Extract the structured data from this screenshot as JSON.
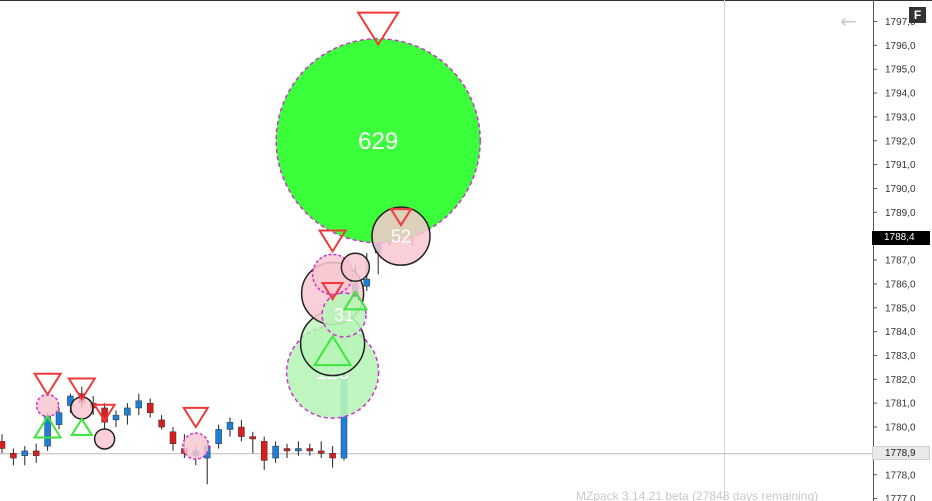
{
  "badge": {
    "label": "F"
  },
  "nav": {
    "back_icon": "left-arrow-icon"
  },
  "watermark": {
    "text": "MZpack 3.14.21 beta  (27848 days remaining)"
  },
  "price_tags": {
    "last": "1788,4",
    "crosshair": "1778,9"
  },
  "colors": {
    "up": "#1e7fd8",
    "down": "#d81e1e",
    "big_fill": "#3cff3c",
    "sell_triangle": "#f03a3a",
    "buy_triangle": "#3ce63c",
    "dashed_ring": "#cc33cc",
    "pink_fill": "#f8c8d0",
    "light_green_fill": "#b8f5b8"
  },
  "chart_data": {
    "type": "candlestick",
    "y_axis": {
      "labels": [
        "1797,0",
        "1796,0",
        "1795,0",
        "1794,0",
        "1793,0",
        "1792,0",
        "1791,0",
        "1790,0",
        "1789,0",
        "1788,0",
        "1787,0",
        "1786,0",
        "1785,0",
        "1784,0",
        "1783,0",
        "1782,0",
        "1781,0",
        "1780,0",
        "1779,0",
        "1778,0",
        "1777,0"
      ],
      "range": [
        1776.9,
        1797.9
      ],
      "position": "right"
    },
    "candles": [
      {
        "o": 1779.4,
        "h": 1779.7,
        "l": 1778.9,
        "c": 1779.1
      },
      {
        "o": 1778.9,
        "h": 1779.1,
        "l": 1778.4,
        "c": 1778.7
      },
      {
        "o": 1778.8,
        "h": 1779.2,
        "l": 1778.4,
        "c": 1779.0
      },
      {
        "o": 1779.0,
        "h": 1779.3,
        "l": 1778.5,
        "c": 1778.8
      },
      {
        "o": 1779.2,
        "h": 1780.6,
        "l": 1779.0,
        "c": 1780.5
      },
      {
        "o": 1780.1,
        "h": 1780.8,
        "l": 1779.9,
        "c": 1780.6
      },
      {
        "o": 1780.9,
        "h": 1781.4,
        "l": 1780.6,
        "c": 1781.3
      },
      {
        "o": 1781.4,
        "h": 1781.7,
        "l": 1780.8,
        "c": 1781.0
      },
      {
        "o": 1781.0,
        "h": 1781.3,
        "l": 1780.5,
        "c": 1780.8
      },
      {
        "o": 1780.8,
        "h": 1781.0,
        "l": 1779.9,
        "c": 1780.2
      },
      {
        "o": 1780.3,
        "h": 1780.7,
        "l": 1780.0,
        "c": 1780.5
      },
      {
        "o": 1780.5,
        "h": 1781.0,
        "l": 1780.1,
        "c": 1780.8
      },
      {
        "o": 1780.8,
        "h": 1781.4,
        "l": 1780.5,
        "c": 1781.1
      },
      {
        "o": 1781.0,
        "h": 1781.2,
        "l": 1780.4,
        "c": 1780.6
      },
      {
        "o": 1780.3,
        "h": 1780.5,
        "l": 1779.9,
        "c": 1780.0
      },
      {
        "o": 1779.8,
        "h": 1780.0,
        "l": 1779.0,
        "c": 1779.3
      },
      {
        "o": 1779.1,
        "h": 1779.7,
        "l": 1778.7,
        "c": 1778.9
      },
      {
        "o": 1778.8,
        "h": 1779.2,
        "l": 1778.4,
        "c": 1779.0
      },
      {
        "o": 1778.7,
        "h": 1779.4,
        "l": 1777.6,
        "c": 1779.2
      },
      {
        "o": 1779.3,
        "h": 1780.1,
        "l": 1779.1,
        "c": 1779.9
      },
      {
        "o": 1779.9,
        "h": 1780.4,
        "l": 1779.6,
        "c": 1780.2
      },
      {
        "o": 1780.0,
        "h": 1780.3,
        "l": 1779.4,
        "c": 1779.6
      },
      {
        "o": 1779.6,
        "h": 1779.8,
        "l": 1778.9,
        "c": 1779.5
      },
      {
        "o": 1779.4,
        "h": 1779.6,
        "l": 1778.2,
        "c": 1778.6
      },
      {
        "o": 1778.7,
        "h": 1779.4,
        "l": 1778.5,
        "c": 1779.2
      },
      {
        "o": 1779.1,
        "h": 1779.3,
        "l": 1778.7,
        "c": 1779.0
      },
      {
        "o": 1779.0,
        "h": 1779.4,
        "l": 1778.8,
        "c": 1779.1
      },
      {
        "o": 1779.1,
        "h": 1779.3,
        "l": 1778.8,
        "c": 1779.0
      },
      {
        "o": 1779.0,
        "h": 1779.4,
        "l": 1778.7,
        "c": 1778.9
      },
      {
        "o": 1778.9,
        "h": 1779.2,
        "l": 1778.3,
        "c": 1778.7
      },
      {
        "o": 1778.7,
        "h": 1784.4,
        "l": 1778.6,
        "c": 1784.0
      },
      {
        "o": 1785.3,
        "h": 1786.8,
        "l": 1784.6,
        "c": 1786.0
      },
      {
        "o": 1785.9,
        "h": 1787.3,
        "l": 1785.7,
        "c": 1786.2
      },
      {
        "o": 1787.3,
        "h": 1791.3,
        "l": 1786.4,
        "c": 1789.3
      },
      {
        "o": 1789.3,
        "h": 1790.0,
        "l": 1787.6,
        "c": 1788.3
      },
      {
        "o": 1788.3,
        "h": 1789.0,
        "l": 1787.8,
        "c": 1788.1
      },
      {
        "o": 1788.0,
        "h": 1788.7,
        "l": 1787.6,
        "c": 1788.4
      }
    ],
    "bubbles": [
      {
        "index": 33,
        "price": 1792.0,
        "size": 102,
        "style": "big",
        "label": "629"
      },
      {
        "index": 35,
        "price": 1788.0,
        "size": 29,
        "style": "pink",
        "label": "52"
      },
      {
        "index": 29,
        "price": 1782.3,
        "size": 46,
        "style": "lightgreen",
        "label": "126"
      },
      {
        "index": 29,
        "price": 1783.5,
        "size": 32,
        "style": "green",
        "label": ""
      },
      {
        "index": 29,
        "price": 1785.6,
        "size": 31,
        "style": "pink",
        "label": ""
      },
      {
        "index": 30,
        "price": 1784.7,
        "size": 22,
        "style": "lightgreen",
        "label": "31"
      },
      {
        "index": 29,
        "price": 1786.4,
        "size": 20,
        "style": "pinkdash",
        "label": ""
      },
      {
        "index": 31,
        "price": 1786.7,
        "size": 14,
        "style": "pink",
        "label": ""
      },
      {
        "index": 4,
        "price": 1780.9,
        "size": 11,
        "style": "pinkdash",
        "label": ""
      },
      {
        "index": 7,
        "price": 1780.8,
        "size": 11,
        "style": "pink",
        "label": ""
      },
      {
        "index": 9,
        "price": 1779.5,
        "size": 10,
        "style": "pink",
        "label": ""
      },
      {
        "index": 17,
        "price": 1779.2,
        "size": 13,
        "style": "pinkdash",
        "label": ""
      }
    ],
    "triangles": [
      {
        "index": 33,
        "price": 1796.7,
        "dir": "down",
        "size": 20
      },
      {
        "index": 35,
        "price": 1788.8,
        "dir": "down",
        "size": 10
      },
      {
        "index": 29,
        "price": 1787.8,
        "dir": "down",
        "size": 13
      },
      {
        "index": 29,
        "price": 1785.7,
        "dir": "down",
        "size": 10
      },
      {
        "index": 4,
        "price": 1781.8,
        "dir": "down",
        "size": 13
      },
      {
        "index": 7,
        "price": 1781.6,
        "dir": "down",
        "size": 13
      },
      {
        "index": 9,
        "price": 1780.6,
        "dir": "down",
        "size": 10
      },
      {
        "index": 17,
        "price": 1780.4,
        "dir": "down",
        "size": 12
      },
      {
        "index": 29,
        "price": 1783.2,
        "dir": "up",
        "size": 18
      },
      {
        "index": 31,
        "price": 1785.3,
        "dir": "up",
        "size": 11
      },
      {
        "index": 4,
        "price": 1780.0,
        "dir": "up",
        "size": 13
      },
      {
        "index": 7,
        "price": 1780.0,
        "dir": "up",
        "size": 10
      }
    ],
    "crosshair_price": 1778.9,
    "last_price": 1788.4,
    "grid": false
  }
}
